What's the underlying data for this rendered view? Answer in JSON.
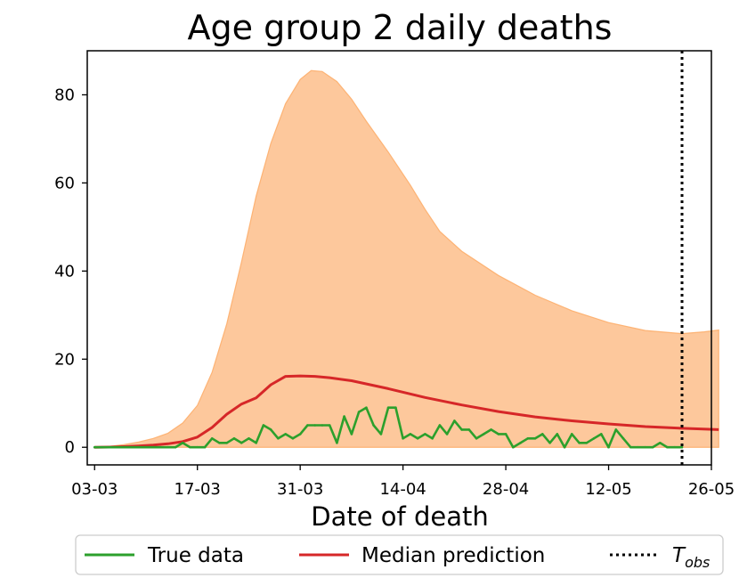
{
  "chart_data": {
    "type": "line",
    "title": "Age group 2 daily deaths",
    "xlabel": "Date of death",
    "ylabel": "",
    "xlim": [
      -1,
      84
    ],
    "ylim": [
      -4,
      90
    ],
    "x_ticks": [
      {
        "day": 0,
        "label": "03-03"
      },
      {
        "day": 14,
        "label": "17-03"
      },
      {
        "day": 28,
        "label": "31-03"
      },
      {
        "day": 42,
        "label": "14-04"
      },
      {
        "day": 56,
        "label": "28-04"
      },
      {
        "day": 70,
        "label": "12-05"
      },
      {
        "day": 84,
        "label": "26-05"
      }
    ],
    "y_ticks": [
      0,
      20,
      40,
      60,
      80
    ],
    "t_obs_day": 80,
    "series": [
      {
        "name": "True data",
        "color": "#2ca02c",
        "points": [
          [
            0,
            0
          ],
          [
            1,
            0
          ],
          [
            2,
            0
          ],
          [
            3,
            0
          ],
          [
            4,
            0
          ],
          [
            5,
            0
          ],
          [
            6,
            0
          ],
          [
            7,
            0
          ],
          [
            8,
            0
          ],
          [
            9,
            0
          ],
          [
            10,
            0
          ],
          [
            11,
            0
          ],
          [
            12,
            1
          ],
          [
            13,
            0
          ],
          [
            14,
            0
          ],
          [
            15,
            0
          ],
          [
            16,
            2
          ],
          [
            17,
            1
          ],
          [
            18,
            1
          ],
          [
            19,
            2
          ],
          [
            20,
            1
          ],
          [
            21,
            2
          ],
          [
            22,
            1
          ],
          [
            23,
            5
          ],
          [
            24,
            4
          ],
          [
            25,
            2
          ],
          [
            26,
            3
          ],
          [
            27,
            2
          ],
          [
            28,
            3
          ],
          [
            29,
            5
          ],
          [
            30,
            5
          ],
          [
            31,
            5
          ],
          [
            32,
            5
          ],
          [
            33,
            1
          ],
          [
            34,
            7
          ],
          [
            35,
            3
          ],
          [
            36,
            8
          ],
          [
            37,
            9
          ],
          [
            38,
            5
          ],
          [
            39,
            3
          ],
          [
            40,
            9
          ],
          [
            41,
            9
          ],
          [
            42,
            2
          ],
          [
            43,
            3
          ],
          [
            44,
            2
          ],
          [
            45,
            3
          ],
          [
            46,
            2
          ],
          [
            47,
            5
          ],
          [
            48,
            3
          ],
          [
            49,
            6
          ],
          [
            50,
            4
          ],
          [
            51,
            4
          ],
          [
            52,
            2
          ],
          [
            53,
            3
          ],
          [
            54,
            4
          ],
          [
            55,
            3
          ],
          [
            56,
            3
          ],
          [
            57,
            0
          ],
          [
            58,
            1
          ],
          [
            59,
            2
          ],
          [
            60,
            2
          ],
          [
            61,
            3
          ],
          [
            62,
            1
          ],
          [
            63,
            3
          ],
          [
            64,
            0
          ],
          [
            65,
            3
          ],
          [
            66,
            1
          ],
          [
            67,
            1
          ],
          [
            68,
            2
          ],
          [
            69,
            3
          ],
          [
            70,
            0
          ],
          [
            71,
            4
          ],
          [
            72,
            2
          ],
          [
            73,
            0
          ],
          [
            74,
            0
          ],
          [
            75,
            0
          ],
          [
            76,
            0
          ],
          [
            77,
            1
          ],
          [
            78,
            0
          ],
          [
            79,
            0
          ],
          [
            80,
            0
          ]
        ]
      },
      {
        "name": "Median prediction",
        "color": "#d62728",
        "points": [
          [
            0,
            0
          ],
          [
            2,
            0.05
          ],
          [
            4,
            0.15
          ],
          [
            6,
            0.3
          ],
          [
            8,
            0.5
          ],
          [
            10,
            0.8
          ],
          [
            12,
            1.3
          ],
          [
            14,
            2.3
          ],
          [
            16,
            4.5
          ],
          [
            18,
            7.5
          ],
          [
            20,
            9.8
          ],
          [
            22,
            11.2
          ],
          [
            24,
            14.2
          ],
          [
            26,
            16.1
          ],
          [
            28,
            16.2
          ],
          [
            30,
            16.1
          ],
          [
            32,
            15.8
          ],
          [
            35,
            15.1
          ],
          [
            40,
            13.3
          ],
          [
            45,
            11.3
          ],
          [
            50,
            9.6
          ],
          [
            55,
            8.1
          ],
          [
            60,
            6.9
          ],
          [
            65,
            6.0
          ],
          [
            70,
            5.3
          ],
          [
            75,
            4.7
          ],
          [
            80,
            4.3
          ],
          [
            85,
            4.0
          ]
        ]
      }
    ],
    "band": {
      "name": "Prediction interval",
      "color": "#fdae6b",
      "lower": 0,
      "upper_points": [
        [
          0,
          0
        ],
        [
          2,
          0.2
        ],
        [
          4,
          0.6
        ],
        [
          6,
          1.2
        ],
        [
          8,
          2.0
        ],
        [
          10,
          3.2
        ],
        [
          12,
          5.5
        ],
        [
          14,
          9.5
        ],
        [
          16,
          17
        ],
        [
          18,
          28
        ],
        [
          20,
          42
        ],
        [
          22,
          57
        ],
        [
          24,
          69
        ],
        [
          26,
          78
        ],
        [
          28,
          83.5
        ],
        [
          29.5,
          85.5
        ],
        [
          31,
          85.3
        ],
        [
          33,
          83
        ],
        [
          35,
          79
        ],
        [
          37,
          74
        ],
        [
          40,
          67
        ],
        [
          43,
          59.5
        ],
        [
          45,
          54
        ],
        [
          47,
          49
        ],
        [
          50,
          44.5
        ],
        [
          55,
          39
        ],
        [
          60,
          34.5
        ],
        [
          65,
          31
        ],
        [
          70,
          28.3
        ],
        [
          75,
          26.5
        ],
        [
          80,
          25.8
        ],
        [
          83,
          26.2
        ],
        [
          85,
          26.6
        ]
      ]
    },
    "legend": {
      "placement": "bottom-outside",
      "entries": [
        {
          "label": "True data",
          "style": "solid",
          "color": "#2ca02c"
        },
        {
          "label": "Median prediction",
          "style": "solid",
          "color": "#d62728"
        },
        {
          "label": "T",
          "label_sub": "obs",
          "style": "dotted",
          "color": "#000000"
        }
      ]
    }
  }
}
